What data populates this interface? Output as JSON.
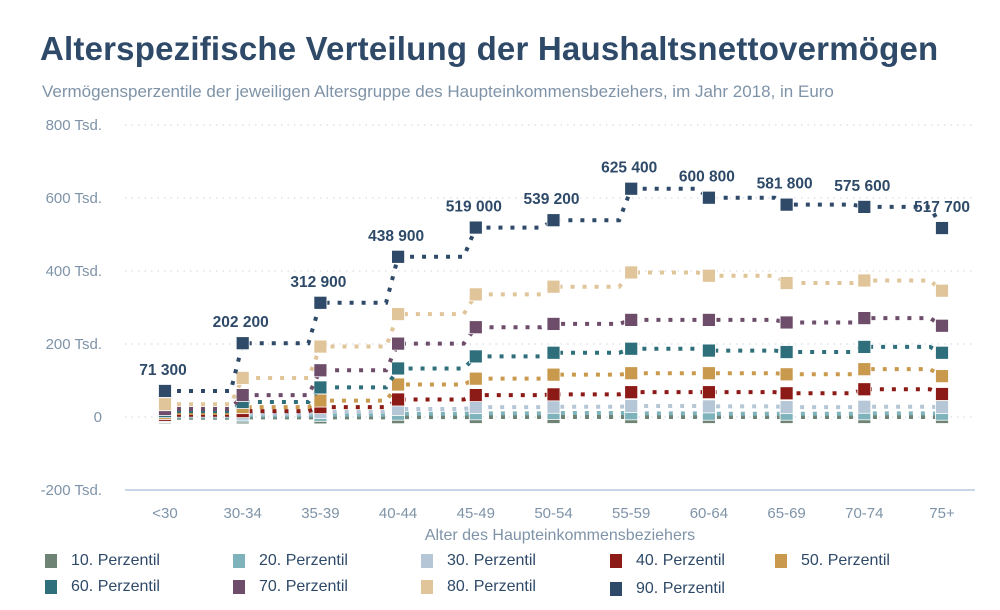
{
  "header": {
    "title": "Alterspezifische Verteilung der Haushaltsnettovermögen",
    "subtitle": "Vermögensperzentile der jeweiligen Altersgruppe des Haupteinkommensbeziehers, im Jahr 2018, in Euro"
  },
  "chart_data": {
    "type": "line",
    "style": "step-lines with square markers, dotted connectors",
    "title": "Alterspezifische Verteilung der Haushaltsnettovermögen",
    "subtitle": "Vermögensperzentile der jeweiligen Altersgruppe des Haupteinkommensbeziehers, im Jahr 2018, in Euro",
    "xlabel": "Alter des Haupteinkommensbeziehers",
    "ylabel": "",
    "categories": [
      "<30",
      "30-34",
      "35-39",
      "40-44",
      "45-49",
      "50-54",
      "55-59",
      "60-64",
      "65-69",
      "70-74",
      "75+"
    ],
    "ylim": [
      -200000,
      800000
    ],
    "yticks": [
      {
        "value": 800000,
        "label": "800 Tsd."
      },
      {
        "value": 600000,
        "label": "600 Tsd."
      },
      {
        "value": 400000,
        "label": "400 Tsd."
      },
      {
        "value": 200000,
        "label": "200 Tsd."
      },
      {
        "value": 0,
        "label": "0"
      },
      {
        "value": -200000,
        "label": "-200 Tsd."
      }
    ],
    "grid": "horizontal dotted",
    "legend_position": "bottom",
    "series": [
      {
        "name": "10. Perzentil",
        "color": "#6e8374",
        "values": [
          -2000,
          -1000,
          -1000,
          -500,
          0,
          0,
          0,
          0,
          0,
          0,
          0
        ]
      },
      {
        "name": "20. Perzentil",
        "color": "#7fb3bb",
        "values": [
          1000,
          4000,
          6000,
          9000,
          10000,
          11000,
          10000,
          9000,
          9000,
          10000,
          9000
        ]
      },
      {
        "name": "30. Perzentil",
        "color": "#b5c7d6",
        "values": [
          3000,
          9000,
          14000,
          22000,
          27000,
          28000,
          30000,
          29000,
          27000,
          28000,
          27000
        ]
      },
      {
        "name": "40. Perzentil",
        "color": "#8c1a16",
        "values": [
          6000,
          16000,
          27000,
          48000,
          60000,
          62000,
          68000,
          68000,
          65000,
          76000,
          63000
        ]
      },
      {
        "name": "50. Perzentil",
        "color": "#c99a4d",
        "values": [
          11000,
          27000,
          45000,
          89000,
          105000,
          116000,
          120000,
          120000,
          117000,
          131000,
          112000
        ]
      },
      {
        "name": "60. Perzentil",
        "color": "#2e6f7b",
        "values": [
          16000,
          41000,
          81000,
          133000,
          166000,
          176000,
          187000,
          182000,
          178000,
          192000,
          176000
        ]
      },
      {
        "name": "70. Perzentil",
        "color": "#6d4d6a",
        "values": [
          22000,
          60000,
          128000,
          201000,
          246000,
          255000,
          266000,
          266000,
          259000,
          271000,
          250000
        ]
      },
      {
        "name": "80. Perzentil",
        "color": "#e1c59a",
        "values": [
          35000,
          107000,
          193000,
          282000,
          336000,
          357000,
          396000,
          387000,
          367000,
          374000,
          346000
        ]
      },
      {
        "name": "90. Perzentil",
        "color": "#2e4a68",
        "values": [
          71300,
          202200,
          312900,
          438900,
          519000,
          539200,
          625400,
          600800,
          581800,
          575600,
          517700
        ],
        "data_labels": [
          "71 300",
          "202 200",
          "312 900",
          "438 900",
          "519 000",
          "539 200",
          "625 400",
          "600 800",
          "581 800",
          "575 600",
          "517 700"
        ]
      }
    ]
  }
}
